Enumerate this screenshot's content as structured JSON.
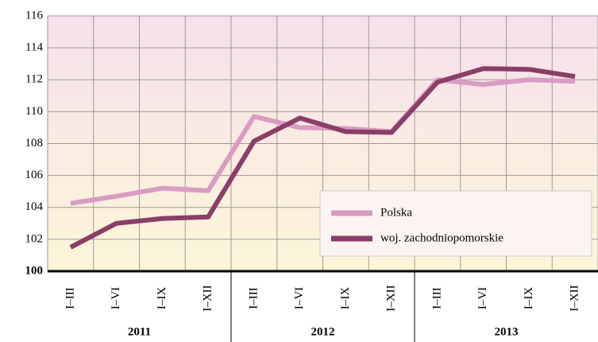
{
  "chart_data": {
    "type": "line",
    "categories": [
      "I–III",
      "I–VI",
      "I–IX",
      "I–XII",
      "I–III",
      "I–VI",
      "I–IX",
      "I–XII",
      "I–III",
      "I–VI",
      "I–IX",
      "I–XII"
    ],
    "category_groups": [
      "2011",
      "2012",
      "2013"
    ],
    "series": [
      {
        "name": "Polska",
        "color": "#d99cc2",
        "values": [
          104.25,
          104.7,
          105.2,
          105.05,
          109.7,
          109.0,
          108.95,
          108.75,
          112.0,
          111.7,
          112.0,
          111.9
        ]
      },
      {
        "name": "woj. zachodniopomorskie",
        "color": "#8a3e68",
        "values": [
          101.5,
          103.0,
          103.3,
          103.4,
          108.15,
          109.6,
          108.75,
          108.7,
          111.85,
          112.7,
          112.65,
          112.2
        ]
      }
    ],
    "ylim": [
      100,
      116
    ],
    "yticks": [
      100,
      102,
      104,
      106,
      108,
      110,
      112,
      114,
      116
    ],
    "grid": true,
    "legend": "lower right"
  }
}
